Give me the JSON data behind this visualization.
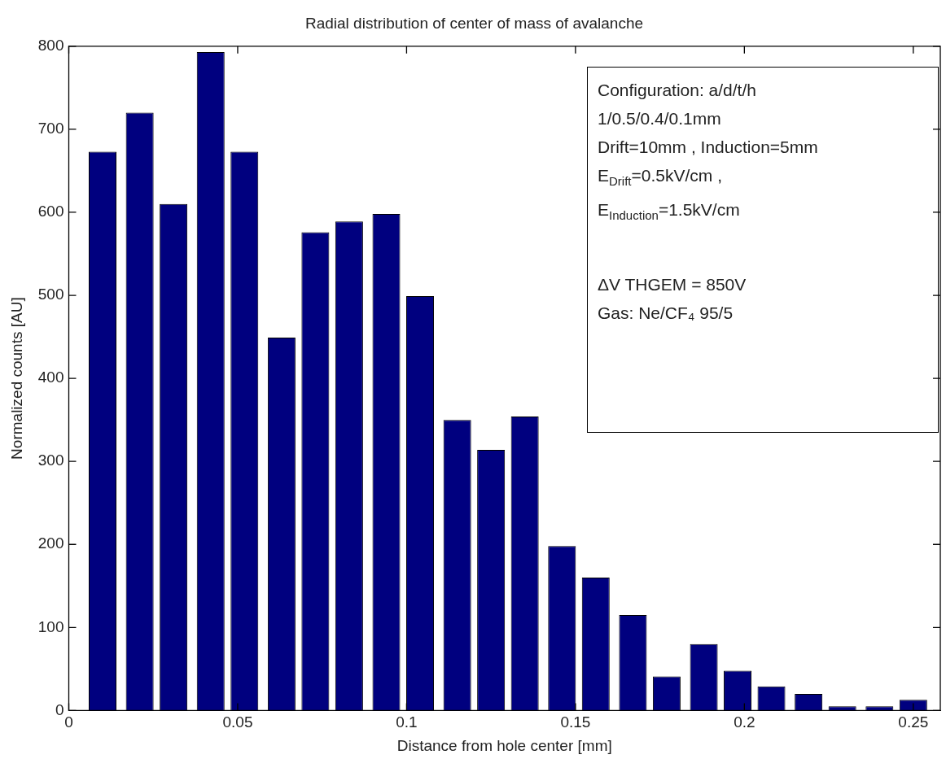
{
  "chart_data": {
    "type": "bar",
    "title": "Radial distribution of center of mass of avalanche",
    "xlabel": "Distance from hole center [mm]",
    "ylabel": "Normalized counts [AU]",
    "x": [
      0.01,
      0.021,
      0.031,
      0.042,
      0.052,
      0.063,
      0.073,
      0.083,
      0.094,
      0.104,
      0.115,
      0.125,
      0.135,
      0.146,
      0.156,
      0.167,
      0.177,
      0.188,
      0.198,
      0.208,
      0.219,
      0.229,
      0.24,
      0.25
    ],
    "values": [
      673,
      720,
      610,
      793,
      673,
      449,
      576,
      589,
      598,
      499,
      350,
      314,
      354,
      198,
      160,
      115,
      41,
      80,
      48,
      29,
      20,
      5,
      5,
      13
    ],
    "color": "#00007f",
    "xlim": [
      0,
      0.258
    ],
    "xticks": [
      0,
      0.05,
      0.1,
      0.15,
      0.2,
      0.25
    ],
    "ylim": [
      0,
      800
    ],
    "yticks": [
      0,
      100,
      200,
      300,
      400,
      500,
      600,
      700,
      800
    ],
    "annotations": [
      "Configuration: a/d/t/h",
      "1/0.5/0.4/0.1mm",
      "Drift=10mm , Induction=5mm",
      "E$_{Drift}$=0.5kV/cm ,",
      "E$_{Induction}$=1.5kV/cm",
      "ΔV THGEM = 850V",
      "Gas: Ne/CF₄ 95/5"
    ]
  }
}
